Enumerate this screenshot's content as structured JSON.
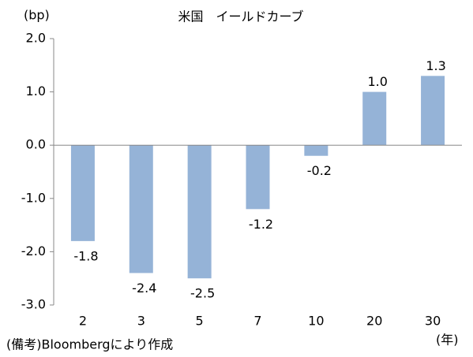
{
  "chart_data": {
    "type": "bar",
    "title": "米国　イールドカーブ",
    "y_unit": "(bp)",
    "x_unit": "(年)",
    "note": "(備考)Bloombergにより作成",
    "categories": [
      "2",
      "3",
      "5",
      "7",
      "10",
      "20",
      "30"
    ],
    "values": [
      -1.8,
      -2.4,
      -2.5,
      -1.2,
      -0.2,
      1.0,
      1.3
    ],
    "value_labels": [
      "-1.8",
      "-2.4",
      "-2.5",
      "-1.2",
      "-0.2",
      "1.0",
      "1.3"
    ],
    "color": "#95b3d7",
    "ylim": [
      -3,
      2
    ],
    "yticks": [
      {
        "value": -3,
        "label": "-3.0"
      },
      {
        "value": -2,
        "label": "-2.0"
      },
      {
        "value": -1,
        "label": "-1.0"
      },
      {
        "value": 0,
        "label": "0.0"
      },
      {
        "value": 1,
        "label": "1.0"
      },
      {
        "value": 2,
        "label": "2.0"
      }
    ],
    "grid": false
  }
}
